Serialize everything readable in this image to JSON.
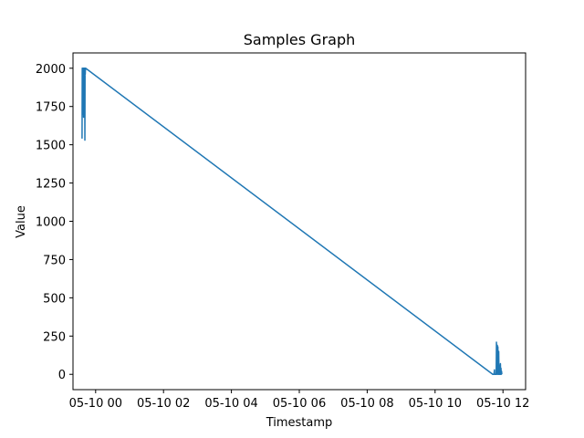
{
  "chart_data": {
    "type": "line",
    "title": "Samples Graph",
    "xlabel": "Timestamp",
    "ylabel": "Value",
    "x_is_time": true,
    "xlim": [
      "2023-05-09T23:20:00",
      "2023-05-10T12:40:00"
    ],
    "ylim": [
      -100,
      2100
    ],
    "x_ticks": [
      {
        "value": "2023-05-10T00:00:00",
        "label": "05-10 00"
      },
      {
        "value": "2023-05-10T02:00:00",
        "label": "05-10 02"
      },
      {
        "value": "2023-05-10T04:00:00",
        "label": "05-10 04"
      },
      {
        "value": "2023-05-10T06:00:00",
        "label": "05-10 06"
      },
      {
        "value": "2023-05-10T08:00:00",
        "label": "05-10 08"
      },
      {
        "value": "2023-05-10T10:00:00",
        "label": "05-10 10"
      },
      {
        "value": "2023-05-10T12:00:00",
        "label": "05-10 12"
      }
    ],
    "y_ticks": [
      0,
      250,
      500,
      750,
      1000,
      1250,
      1500,
      1750,
      2000
    ],
    "grid": false,
    "color": "#1f77b4",
    "series": [
      {
        "x": [
          "2023-05-09T23:36:00",
          "2023-05-09T23:36:20",
          "2023-05-09T23:36:40",
          "2023-05-09T23:37:00",
          "2023-05-09T23:37:20",
          "2023-05-09T23:37:40",
          "2023-05-09T23:38:00",
          "2023-05-09T23:38:20",
          "2023-05-09T23:38:40",
          "2023-05-09T23:39:00",
          "2023-05-09T23:39:20",
          "2023-05-09T23:39:40",
          "2023-05-09T23:40:00",
          "2023-05-09T23:40:20",
          "2023-05-09T23:40:40",
          "2023-05-09T23:41:00",
          "2023-05-09T23:41:20",
          "2023-05-09T23:41:40",
          "2023-05-09T23:42:00",
          "2023-05-09T23:42:20",
          "2023-05-10T11:42:00",
          "2023-05-10T11:44:00",
          "2023-05-10T11:45:00",
          "2023-05-10T11:45:20",
          "2023-05-10T11:46:00",
          "2023-05-10T11:48:00",
          "2023-05-10T11:48:30",
          "2023-05-10T11:49:00",
          "2023-05-10T11:50:00",
          "2023-05-10T11:50:30",
          "2023-05-10T11:51:00",
          "2023-05-10T11:52:00",
          "2023-05-10T11:52:30",
          "2023-05-10T11:53:00",
          "2023-05-10T11:54:00",
          "2023-05-10T11:54:30",
          "2023-05-10T11:55:00",
          "2023-05-10T11:55:30",
          "2023-05-10T11:56:00",
          "2023-05-10T11:56:30",
          "2023-05-10T11:57:00",
          "2023-05-10T11:57:30",
          "2023-05-10T11:58:00"
        ],
        "y": [
          1540,
          2000,
          1700,
          2000,
          1760,
          1990,
          1820,
          2000,
          1680,
          2000,
          1900,
          1720,
          2000,
          1850,
          2000,
          1530,
          2000,
          1960,
          2000,
          2000,
          0,
          0,
          30,
          0,
          0,
          0,
          210,
          0,
          190,
          0,
          180,
          0,
          150,
          0,
          0,
          60,
          0,
          70,
          0,
          40,
          0,
          20,
          0
        ]
      }
    ]
  }
}
